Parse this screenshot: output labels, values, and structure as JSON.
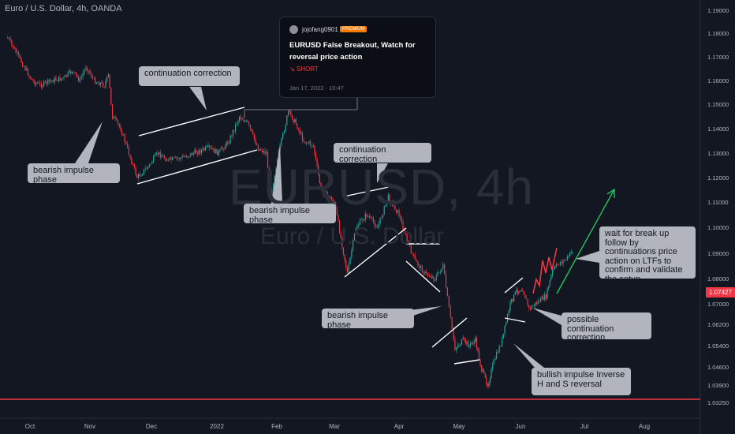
{
  "header": {
    "symbol_title": "Euro / U.S. Dollar, 4h, OANDA"
  },
  "watermark": {
    "symbol": "EURUSD, 4h",
    "description": "Euro / U.S. Dollar"
  },
  "idea_card": {
    "author": "jojofang0901",
    "badge": "PREMIUM",
    "title": "EURUSD False Breakout, Watch for reversal price action",
    "direction": "↘ SHORT",
    "date": "Jan 17, 2022 · 10:47"
  },
  "annotations": {
    "continuation_correction_1": "continuation correction",
    "bearish_impulse_1": "bearish impulse phase",
    "bearish_impulse_2": "bearish impulse phase",
    "continuation_correction_2": "continuation correction",
    "bearish_impulse_3": "bearish impulse phase",
    "wait_note": "wait for break up follow by continuations price action on LTFs to confirm and validate the setup",
    "possible_continuation": "possible continuation correction",
    "bullish_impulse": "bullish impulse Inverse H and S reversal"
  },
  "colors": {
    "up": "#26a69a",
    "down": "#f23645",
    "background": "#131722",
    "projection": "#22c55e"
  },
  "chart_data": {
    "type": "line",
    "title": "Euro / U.S. Dollar, 4h, OANDA",
    "x_labels": [
      "Oct",
      "Nov",
      "Dec",
      "2022",
      "Feb",
      "Mar",
      "Apr",
      "May",
      "Jun",
      "Jul",
      "Aug"
    ],
    "y_ticks": [
      1.19,
      1.18,
      1.17,
      1.16,
      1.15,
      1.14,
      1.13,
      1.12,
      1.11,
      1.1,
      1.09,
      1.08,
      1.07,
      1.062,
      1.054,
      1.046,
      1.039,
      1.0325
    ],
    "y_tick_labels": [
      "1.19000",
      "1.18000",
      "1.17000",
      "1.16000",
      "1.15000",
      "1.14000",
      "1.13000",
      "1.12000",
      "1.11000",
      "1.10000",
      "1.09000",
      "1.08000",
      "1.07000",
      "1.06200",
      "1.05400",
      "1.04600",
      "1.03900",
      "1.03250"
    ],
    "last_price": "1.07427",
    "series": [
      {
        "points": [
          [
            "Sep 20",
            1.178
          ],
          [
            "Sep 24",
            1.172
          ],
          [
            "Sep 28",
            1.166
          ],
          [
            "Oct 2",
            1.16
          ],
          [
            "Oct 6",
            1.158
          ],
          [
            "Oct 12",
            1.16
          ],
          [
            "Oct 18",
            1.161
          ],
          [
            "Oct 22",
            1.164
          ],
          [
            "Oct 26",
            1.16
          ],
          [
            "Oct 29",
            1.166
          ],
          [
            "Nov 3",
            1.16
          ],
          [
            "Nov 8",
            1.158
          ],
          [
            "Nov 10",
            1.162
          ],
          [
            "Nov 12",
            1.145
          ],
          [
            "Nov 16",
            1.14
          ],
          [
            "Nov 20",
            1.13
          ],
          [
            "Nov 24",
            1.12
          ],
          [
            "Nov 30",
            1.125
          ],
          [
            "Dec 4",
            1.13
          ],
          [
            "Dec 9",
            1.127
          ],
          [
            "Dec 15",
            1.128
          ],
          [
            "Dec 21",
            1.13
          ],
          [
            "Dec 28",
            1.132
          ],
          [
            "Jan 3",
            1.13
          ],
          [
            "Jan 8",
            1.135
          ],
          [
            "Jan 13",
            1.145
          ],
          [
            "Jan 17",
            1.142
          ],
          [
            "Jan 22",
            1.132
          ],
          [
            "Jan 26",
            1.13
          ],
          [
            "Jan 28",
            1.113
          ],
          [
            "Feb 2",
            1.13
          ],
          [
            "Feb 7",
            1.147
          ],
          [
            "Feb 11",
            1.142
          ],
          [
            "Feb 15",
            1.135
          ],
          [
            "Feb 20",
            1.133
          ],
          [
            "Feb 24",
            1.115
          ],
          [
            "Mar 1",
            1.11
          ],
          [
            "Mar 7",
            1.082
          ],
          [
            "Mar 11",
            1.1
          ],
          [
            "Mar 16",
            1.105
          ],
          [
            "Mar 21",
            1.1
          ],
          [
            "Mar 26",
            1.112
          ],
          [
            "Apr 1",
            1.105
          ],
          [
            "Apr 5",
            1.095
          ],
          [
            "Apr 9",
            1.087
          ],
          [
            "Apr 14",
            1.082
          ],
          [
            "Apr 19",
            1.08
          ],
          [
            "Apr 23",
            1.085
          ],
          [
            "Apr 26",
            1.068
          ],
          [
            "Apr 29",
            1.053
          ],
          [
            "May 3",
            1.056
          ],
          [
            "May 6",
            1.054
          ],
          [
            "May 9",
            1.056
          ],
          [
            "May 12",
            1.045
          ],
          [
            "May 15",
            1.039
          ],
          [
            "May 18",
            1.048
          ],
          [
            "May 22",
            1.056
          ],
          [
            "May 26",
            1.07
          ],
          [
            "May 29",
            1.075
          ],
          [
            "Jun 2",
            1.076
          ],
          [
            "Jun 5",
            1.068
          ],
          [
            "Jun 8",
            1.07
          ],
          [
            "Jun 13",
            1.073
          ],
          [
            "Jun 16",
            1.083
          ],
          [
            "Jun 19",
            1.086
          ],
          [
            "Jun 23",
            1.088
          ],
          [
            "Jun 26",
            1.092
          ]
        ]
      }
    ],
    "legend": "none",
    "grid": false
  }
}
